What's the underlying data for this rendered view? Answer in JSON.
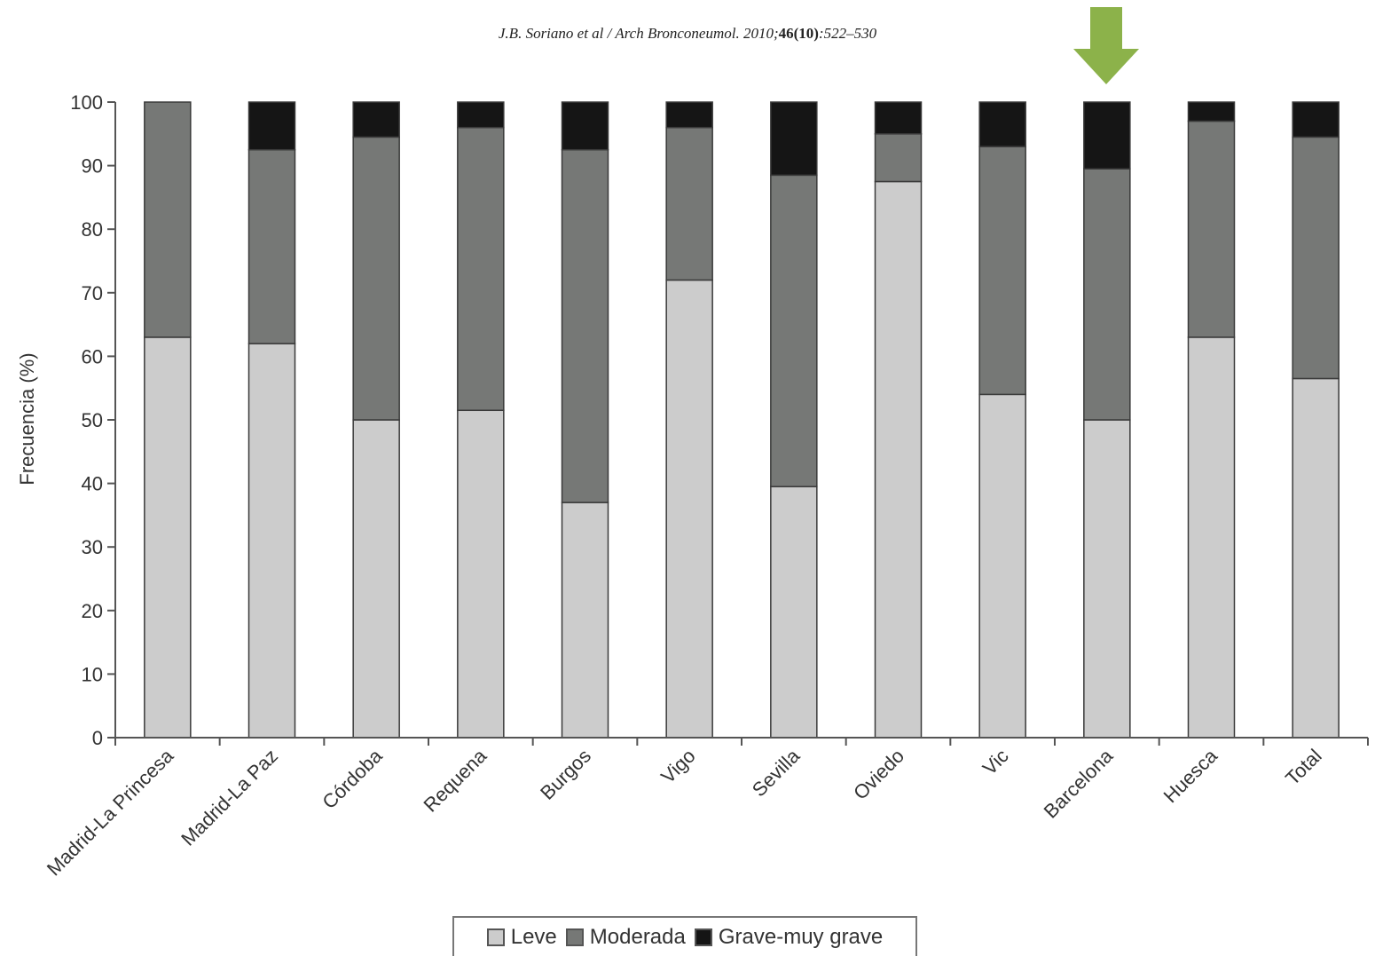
{
  "citation": {
    "authors": "J.B. Soriano et al / Arch Bronconeumol. 2010;",
    "volume": "46",
    "issue": "(10)",
    "pages": ":522–530"
  },
  "colors": {
    "leve": "#cccccc",
    "moderada": "#767876",
    "grave": "#151515",
    "arrow": "#8cb24a",
    "axis": "#555555"
  },
  "chart_data": {
    "type": "bar",
    "stacked": true,
    "ylabel": "Frecuencia (%)",
    "ylim": [
      0,
      100
    ],
    "yticks": [
      0,
      10,
      20,
      30,
      40,
      50,
      60,
      70,
      80,
      90,
      100
    ],
    "categories": [
      "Madrid-La Princesa",
      "Madrid-La Paz",
      "Córdoba",
      "Requena",
      "Burgos",
      "Vigo",
      "Sevilla",
      "Oviedo",
      "Vic",
      "Barcelona",
      "Huesca",
      "Total"
    ],
    "series": [
      {
        "name": "Leve",
        "values": [
          63,
          62,
          50,
          51.5,
          37,
          72,
          39.5,
          87.5,
          54,
          50,
          63,
          56.5
        ]
      },
      {
        "name": "Moderada",
        "values": [
          37,
          30.5,
          44.5,
          44.5,
          55.5,
          24,
          49,
          7.5,
          39,
          39.5,
          34,
          38
        ]
      },
      {
        "name": "Grave-muy grave",
        "values": [
          0,
          7.5,
          5.5,
          4,
          7.5,
          4,
          11.5,
          5,
          7,
          10.5,
          3,
          5.5
        ]
      }
    ],
    "legend_position": "bottom",
    "grid": false,
    "highlight_arrow": "arrow-icon above Barcelona"
  }
}
